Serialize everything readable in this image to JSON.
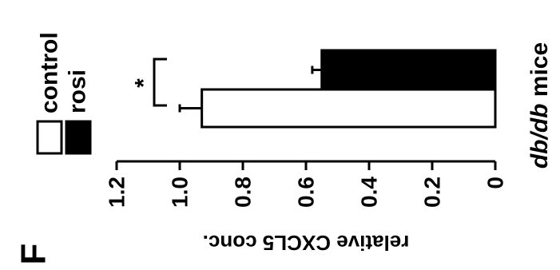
{
  "panel_label": "F",
  "chart_data": {
    "type": "bar",
    "orientation": "horizontal",
    "title": "",
    "xlabel": "relative CXCL5 conc.",
    "ylabel": "",
    "group_label": "db/db mice",
    "xlim": [
      0,
      1.2
    ],
    "ticks": [
      "0",
      "0.2",
      "0.4",
      "0.6",
      "0.8",
      "1.0",
      "1.2"
    ],
    "tick_values": [
      0,
      0.2,
      0.4,
      0.6,
      0.8,
      1.0,
      1.2
    ],
    "series": [
      {
        "name": "control",
        "value": 0.93,
        "error": 0.07,
        "color": "#ffffff"
      },
      {
        "name": "rosi",
        "value": 0.55,
        "error": 0.03,
        "color": "#000000"
      }
    ],
    "annotation": "*",
    "legend_position": "top-left",
    "grid": false
  }
}
